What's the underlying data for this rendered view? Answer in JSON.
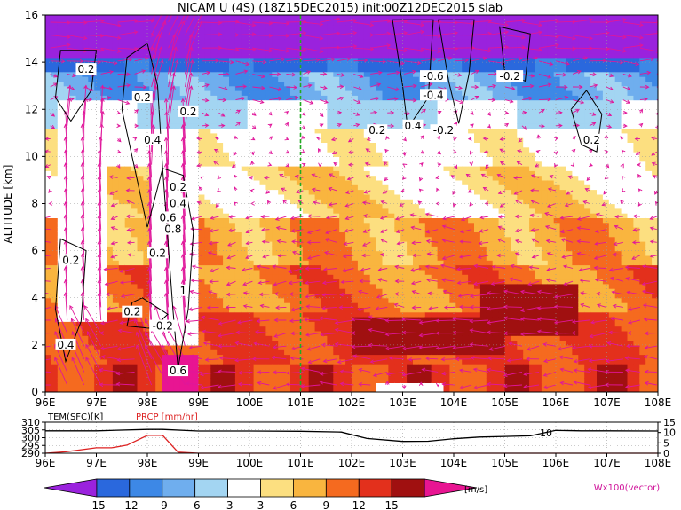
{
  "chart_data": {
    "type": "heatmap",
    "title": "NICAM U (4S) (18Z15DEC2015) init:00Z12DEC2015 slab",
    "main_panel": {
      "xlabel": "",
      "ylabel": "ALTITUDE [km]",
      "x_ticks": [
        "96E",
        "97E",
        "98E",
        "99E",
        "100E",
        "101E",
        "102E",
        "103E",
        "104E",
        "105E",
        "106E",
        "107E",
        "108E"
      ],
      "x_tick_values": [
        96,
        97,
        98,
        99,
        100,
        101,
        102,
        103,
        104,
        105,
        106,
        107,
        108
      ],
      "y_ticks": [
        "0",
        "2",
        "4",
        "6",
        "8",
        "10",
        "12",
        "14",
        "16"
      ],
      "y_tick_values": [
        0,
        2,
        4,
        6,
        8,
        10,
        12,
        14,
        16
      ],
      "xlim": [
        96,
        108
      ],
      "ylim": [
        0,
        16
      ],
      "grid": true,
      "marked_longitude": 101,
      "marked_longitude_color": "#22aa22",
      "color_field_ms": {
        "description_bands": [
          {
            "altitude_range": [
              14,
              16
            ],
            "value": -15
          },
          {
            "altitude_range": [
              13,
              14
            ],
            "value": -12
          },
          {
            "altitude_range": [
              12,
              13
            ],
            "value": -6
          },
          {
            "altitude_range": [
              11,
              12
            ],
            "value": -3
          },
          {
            "altitude_range": [
              9,
              11
            ],
            "value": 0
          },
          {
            "altitude_range": [
              7,
              9
            ],
            "value": 4
          },
          {
            "altitude_range": [
              5,
              7
            ],
            "value": 8
          },
          {
            "altitude_range": [
              3,
              5
            ],
            "value": 10
          },
          {
            "altitude_range": [
              1,
              3
            ],
            "value": 13
          },
          {
            "altitude_range": [
              0,
              1
            ],
            "value": 16
          }
        ]
      },
      "contour_labels": [
        {
          "lon": 96.8,
          "alt": 13.7,
          "text": "0.2"
        },
        {
          "lon": 97.9,
          "alt": 12.5,
          "text": "0.2"
        },
        {
          "lon": 98.1,
          "alt": 10.7,
          "text": "0.4"
        },
        {
          "lon": 98.6,
          "alt": 8.7,
          "text": "0.2"
        },
        {
          "lon": 98.6,
          "alt": 8.0,
          "text": "0.4"
        },
        {
          "lon": 98.4,
          "alt": 7.4,
          "text": "0.6"
        },
        {
          "lon": 98.5,
          "alt": 6.9,
          "text": "0.8"
        },
        {
          "lon": 98.2,
          "alt": 5.9,
          "text": "0.2"
        },
        {
          "lon": 96.5,
          "alt": 5.6,
          "text": "0.2"
        },
        {
          "lon": 98.7,
          "alt": 4.3,
          "text": "1"
        },
        {
          "lon": 97.7,
          "alt": 3.4,
          "text": "0.2"
        },
        {
          "lon": 98.3,
          "alt": 2.8,
          "text": "-0.2"
        },
        {
          "lon": 96.4,
          "alt": 2.0,
          "text": "0.4"
        },
        {
          "lon": 98.6,
          "alt": 0.9,
          "text": "0.6"
        },
        {
          "lon": 98.8,
          "alt": 11.9,
          "text": "0.2"
        },
        {
          "lon": 103.6,
          "alt": 13.4,
          "text": "-0.6"
        },
        {
          "lon": 103.6,
          "alt": 12.6,
          "text": "-0.4"
        },
        {
          "lon": 105.1,
          "alt": 13.4,
          "text": "-0.2"
        },
        {
          "lon": 102.5,
          "alt": 11.1,
          "text": "0.2"
        },
        {
          "lon": 103.2,
          "alt": 11.3,
          "text": "0.4"
        },
        {
          "lon": 103.8,
          "alt": 11.1,
          "text": "-0.2"
        },
        {
          "lon": 106.7,
          "alt": 10.7,
          "text": "0.2"
        }
      ]
    },
    "sub_panel": {
      "left_label": "TEM(SFC)[K]",
      "right_label": "PRCP [mm/hr]",
      "left_ticks": [
        "310",
        "305",
        "300",
        "295",
        "290"
      ],
      "left_tick_values": [
        310,
        305,
        300,
        295,
        290
      ],
      "right_ticks": [
        "15",
        "10",
        "5",
        "0"
      ],
      "right_tick_values": [
        15,
        10,
        5,
        0
      ],
      "x_ticks": [
        "96E",
        "97E",
        "98E",
        "99E",
        "100E",
        "101E",
        "102E",
        "103E",
        "104E",
        "105E",
        "106E",
        "107E",
        "108E"
      ],
      "annotation": "10",
      "temperature": {
        "lon": [
          96,
          97,
          98,
          98.3,
          99,
          100,
          101,
          101.8,
          102.3,
          103,
          103.5,
          104,
          104.5,
          105,
          105.5,
          106,
          106.5,
          107,
          108
        ],
        "values": [
          304.4,
          304.4,
          305.3,
          305.3,
          304.3,
          304.3,
          304.1,
          303.6,
          299.5,
          297.6,
          297.7,
          299.3,
          300.4,
          300.8,
          301.2,
          304.7,
          304.4,
          304.4,
          304.3
        ]
      },
      "precipitation": {
        "lon": [
          96,
          96.4,
          97,
          97.3,
          97.6,
          98,
          98.3,
          98.6,
          99
        ],
        "values": [
          0,
          0.7,
          2.6,
          2.6,
          3.9,
          8.6,
          8.6,
          0.5,
          0
        ]
      },
      "temperature_color": "#000000",
      "precipitation_color": "#dd2222"
    },
    "colorbar": {
      "unit": "[m/s]",
      "tick_labels": [
        "-15",
        "-12",
        "-9",
        "-6",
        "-3",
        "3",
        "6",
        "9",
        "12",
        "15"
      ],
      "bins": [
        {
          "lo": -18,
          "hi": -15,
          "color": "#9a22dd"
        },
        {
          "lo": -15,
          "hi": -12,
          "color": "#2a68dd"
        },
        {
          "lo": -12,
          "hi": -9,
          "color": "#3d88e6"
        },
        {
          "lo": -9,
          "hi": -6,
          "color": "#6faeee"
        },
        {
          "lo": -6,
          "hi": -3,
          "color": "#a3d5f2"
        },
        {
          "lo": -3,
          "hi": 3,
          "color": "#ffffff"
        },
        {
          "lo": 3,
          "hi": 6,
          "color": "#fcdf80"
        },
        {
          "lo": 6,
          "hi": 9,
          "color": "#f9b53f"
        },
        {
          "lo": 9,
          "hi": 12,
          "color": "#f56a1f"
        },
        {
          "lo": 12,
          "hi": 15,
          "color": "#e3301c"
        },
        {
          "lo": 15,
          "hi": 18,
          "color": "#a01010"
        },
        {
          "lo": 18,
          "hi": 21,
          "color": "#e81592"
        }
      ]
    },
    "vector_legend": "Wx100(vector)",
    "vector_color": "#e0169a"
  }
}
